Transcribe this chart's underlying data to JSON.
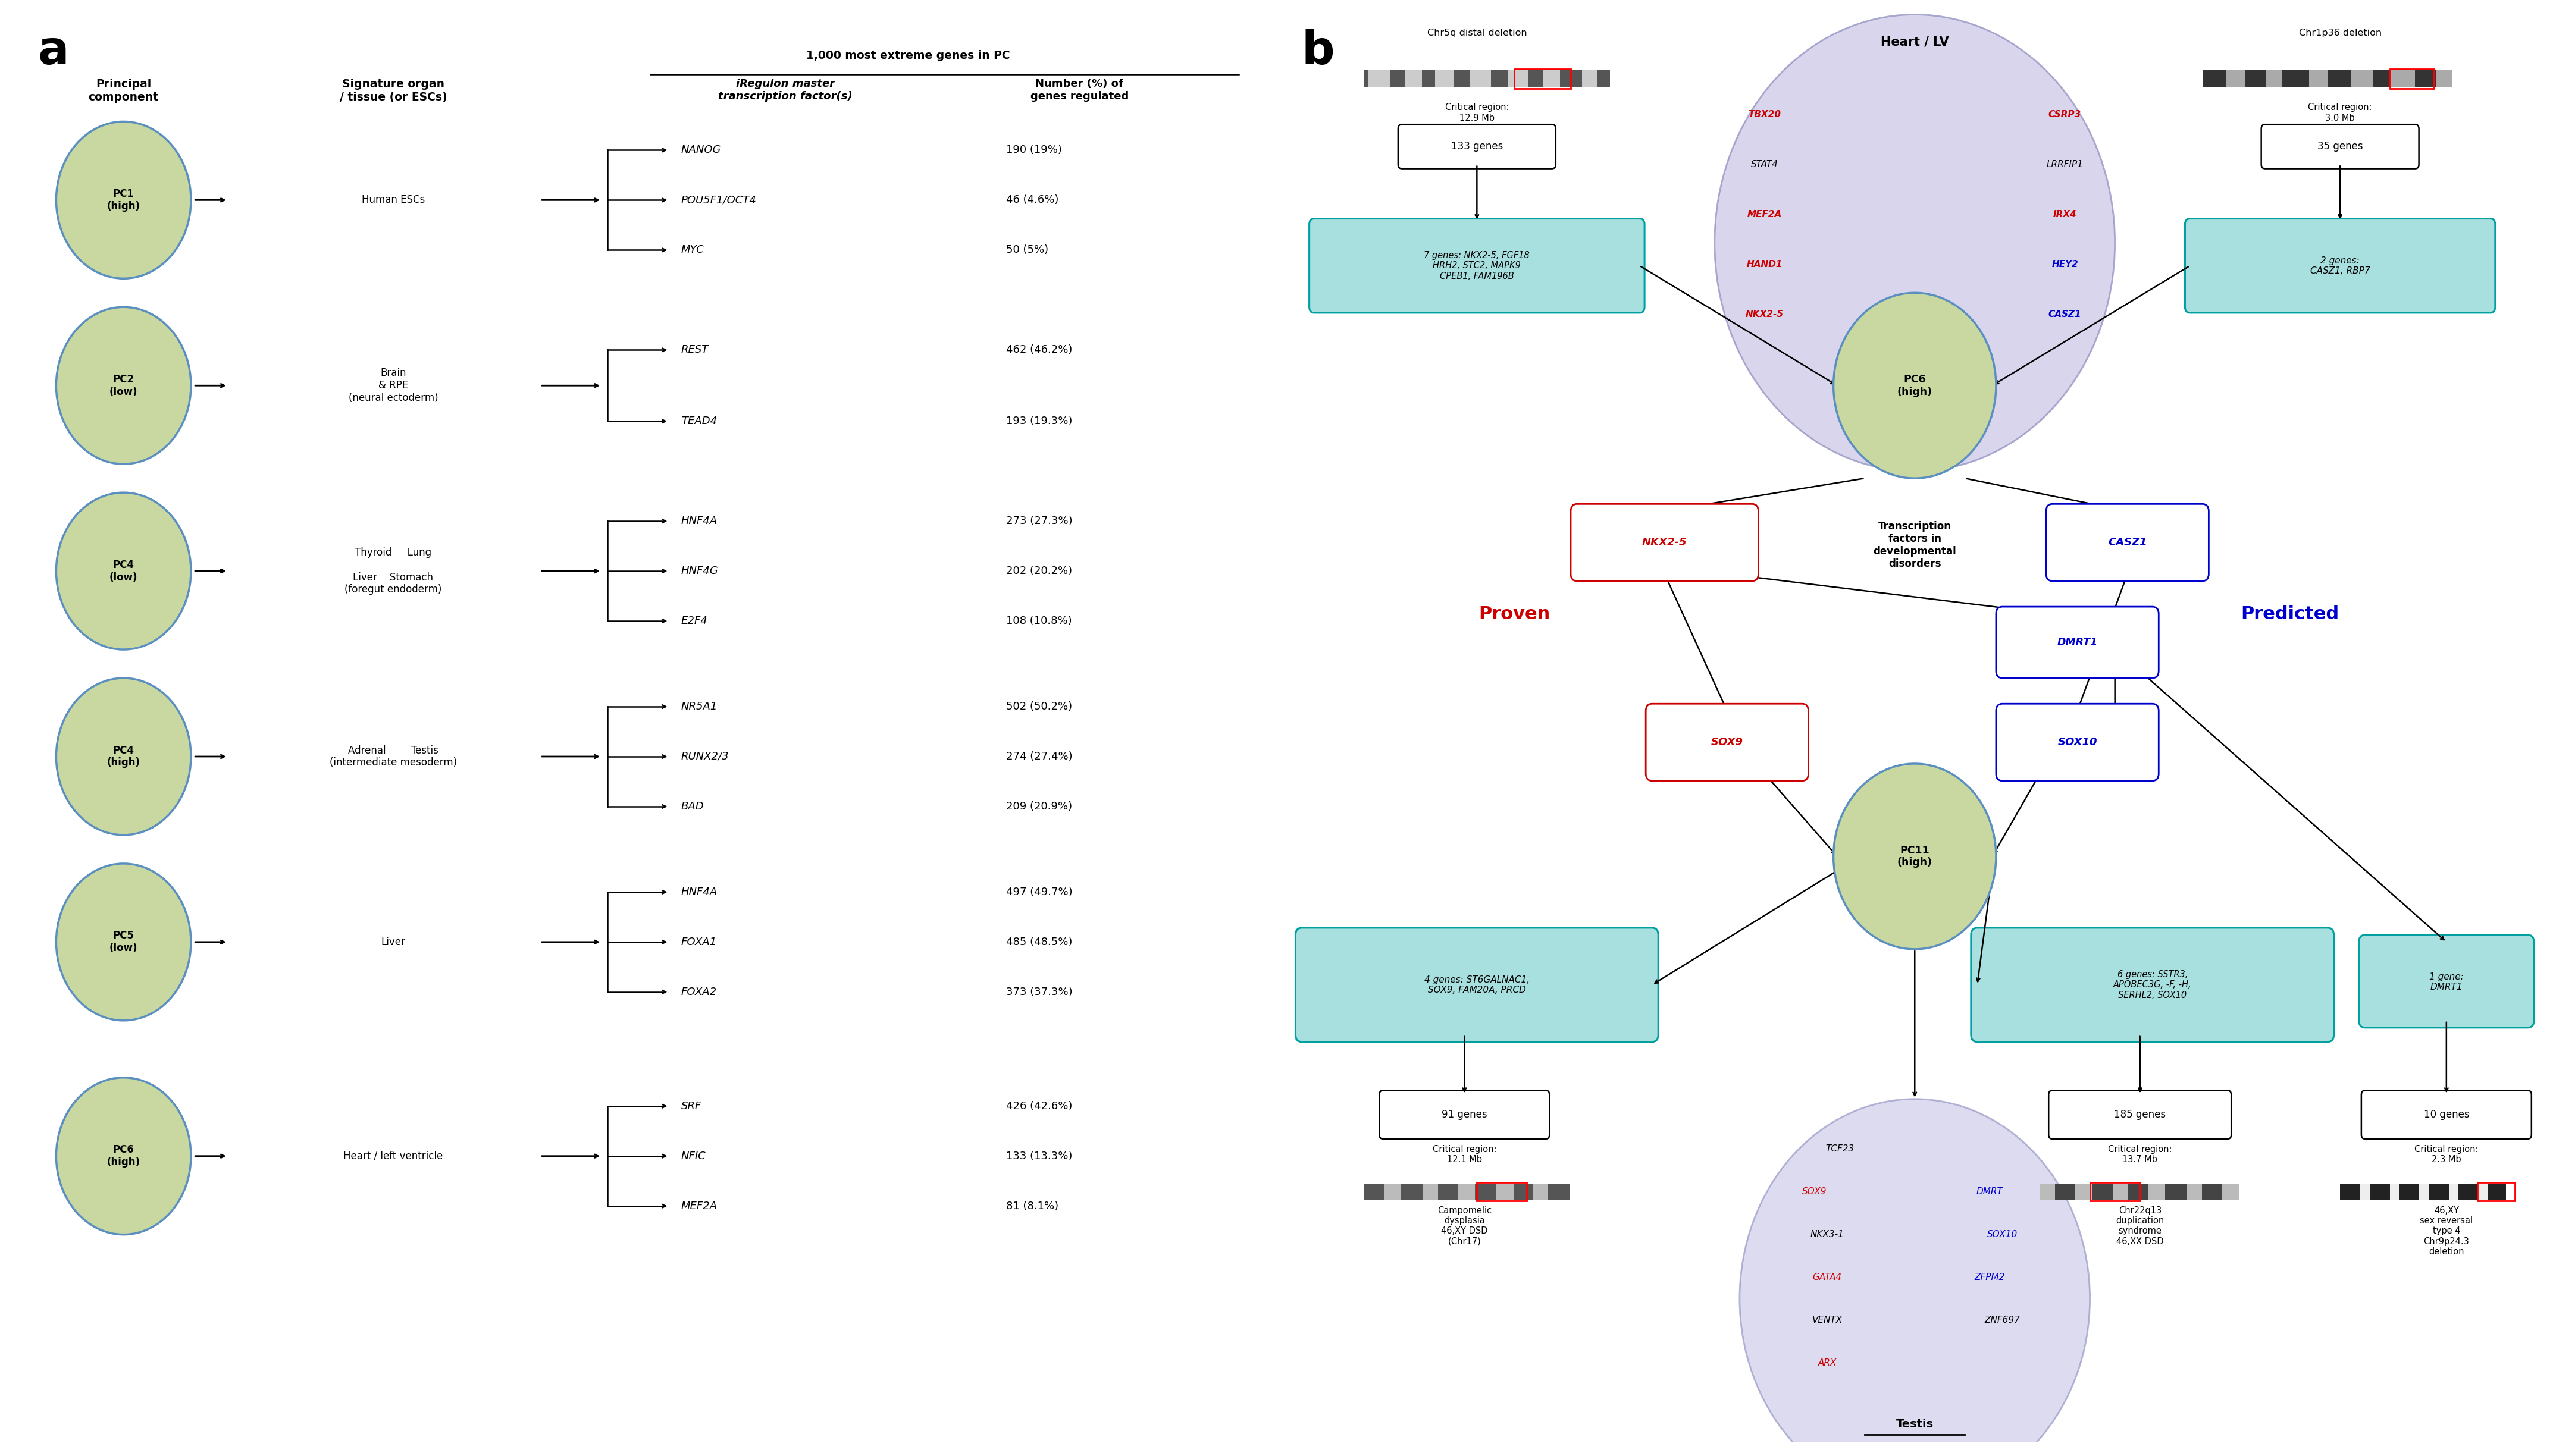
{
  "panel_a": {
    "rows": [
      {
        "pc": "PC1\n(high)",
        "organ_label": "Human ESCs",
        "tfs": [
          "NANOG",
          "POU5F1/OCT4",
          "MYC"
        ],
        "nums": [
          "190 (19%)",
          "46 (4.6%)",
          "50 (5%)"
        ]
      },
      {
        "pc": "PC2\n(low)",
        "organ_label": "Brain\n& RPE\n(neural ectoderm)",
        "tfs": [
          "REST",
          "TEAD4"
        ],
        "nums": [
          "462 (46.2%)",
          "193 (19.3%)"
        ]
      },
      {
        "pc": "PC4\n(low)",
        "organ_label": "Thyroid     Lung\n\nLiver    Stomach\n(foregut endoderm)",
        "tfs": [
          "HNF4A",
          "HNF4G",
          "E2F4"
        ],
        "nums": [
          "273 (27.3%)",
          "202 (20.2%)",
          "108 (10.8%)"
        ]
      },
      {
        "pc": "PC4\n(high)",
        "organ_label": "Adrenal        Testis\n(intermediate mesoderm)",
        "tfs": [
          "NR5A1",
          "RUNX2/3",
          "BAD"
        ],
        "nums": [
          "502 (50.2%)",
          "274 (27.4%)",
          "209 (20.9%)"
        ]
      },
      {
        "pc": "PC5\n(low)",
        "organ_label": "Liver",
        "tfs": [
          "HNF4A",
          "FOXA1",
          "FOXA2"
        ],
        "nums": [
          "497 (49.7%)",
          "485 (48.5%)",
          "373 (37.3%)"
        ]
      },
      {
        "pc": "PC6\n(high)",
        "organ_label": "Heart / left ventricle",
        "tfs": [
          "SRF",
          "NFIC",
          "MEF2A"
        ],
        "nums": [
          "426 (42.6%)",
          "133 (13.3%)",
          "81 (8.1%)"
        ]
      }
    ]
  },
  "colors": {
    "pc_circle_fill": "#c8d8a0",
    "pc_circle_border": "#5a8fc0",
    "teal_box": "#a8e0e0",
    "teal_box_border": "#00a0a0",
    "heart_circle_fill": "#ccc8e8",
    "heart_circle_border": "#9090c0",
    "testis_circle_fill": "#ccc8e8",
    "testis_circle_border": "#9090c0",
    "red_text": "#cc0000",
    "blue_text": "#0000cc"
  }
}
